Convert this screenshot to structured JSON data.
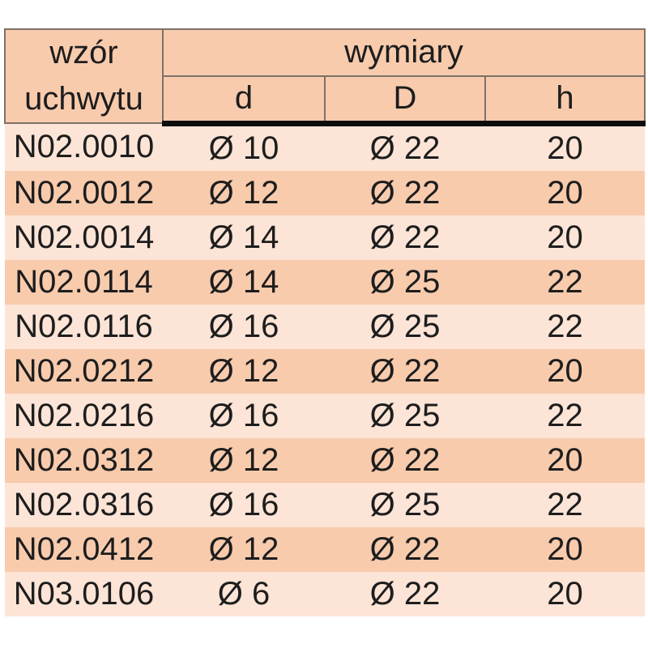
{
  "table": {
    "header": {
      "pattern_label_line1": "wzór",
      "pattern_label_line2": "uchwytu",
      "dimensions_label": "wymiary",
      "dimension_columns": [
        "d",
        "D",
        "h"
      ]
    },
    "rows": [
      {
        "model": "N02.0010",
        "d": "Ø 10",
        "D": "Ø 22",
        "h": "20"
      },
      {
        "model": "N02.0012",
        "d": "Ø 12",
        "D": "Ø 22",
        "h": "20"
      },
      {
        "model": "N02.0014",
        "d": "Ø 14",
        "D": "Ø 22",
        "h": "20"
      },
      {
        "model": "N02.0114",
        "d": "Ø 14",
        "D": "Ø 25",
        "h": "22"
      },
      {
        "model": "N02.0116",
        "d": "Ø 16",
        "D": "Ø 25",
        "h": "22"
      },
      {
        "model": "N02.0212",
        "d": "Ø 12",
        "D": "Ø 22",
        "h": "20"
      },
      {
        "model": "N02.0216",
        "d": "Ø 16",
        "D": "Ø 25",
        "h": "22"
      },
      {
        "model": "N02.0312",
        "d": "Ø 12",
        "D": "Ø 22",
        "h": "20"
      },
      {
        "model": "N02.0316",
        "d": "Ø 16",
        "D": "Ø 25",
        "h": "22"
      },
      {
        "model": "N02.0412",
        "d": "Ø 12",
        "D": "Ø 22",
        "h": "20"
      },
      {
        "model": "N03.0106",
        "d": "Ø 6",
        "D": "Ø 22",
        "h": "20"
      }
    ],
    "colors": {
      "header_bg": "#f8cbad",
      "row_light_bg": "#fce4d6",
      "row_dark_bg": "#f8cbad",
      "thin_border": "#7d7168",
      "thick_divider": "#0d0d0d",
      "text": "#1d1d1d",
      "page_bg": "#ffffff"
    }
  }
}
